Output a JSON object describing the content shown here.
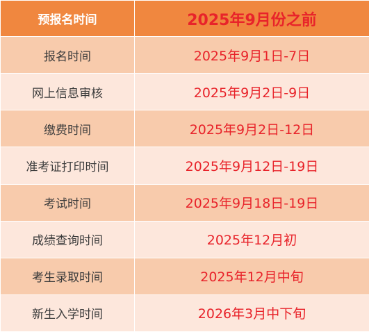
{
  "header": {
    "label": "预报名时间",
    "value": "2025年9月份之前"
  },
  "rows": [
    {
      "item": "报名时间",
      "date": "2025年9月1日-7日"
    },
    {
      "item": "网上信息审核",
      "date": "2025年9月2日-9日"
    },
    {
      "item": "缴费时间",
      "date": "2025年9月2日-12日"
    },
    {
      "item": "准考证打印时间",
      "date": "2025年9月12日-19日"
    },
    {
      "item": "考试时间",
      "date": "2025年9月18日-19日"
    },
    {
      "item": "成绩查询时间",
      "date": "2025年12月初"
    },
    {
      "item": "考生录取时间",
      "date": "2025年12月中旬"
    },
    {
      "item": "新生入学时间",
      "date": "2026年3月中下旬"
    }
  ],
  "colors": {
    "header_bg": "#f0873f",
    "row_dark": "#f8cbac",
    "row_light": "#fde7dc",
    "date_text": "#e8232a"
  }
}
